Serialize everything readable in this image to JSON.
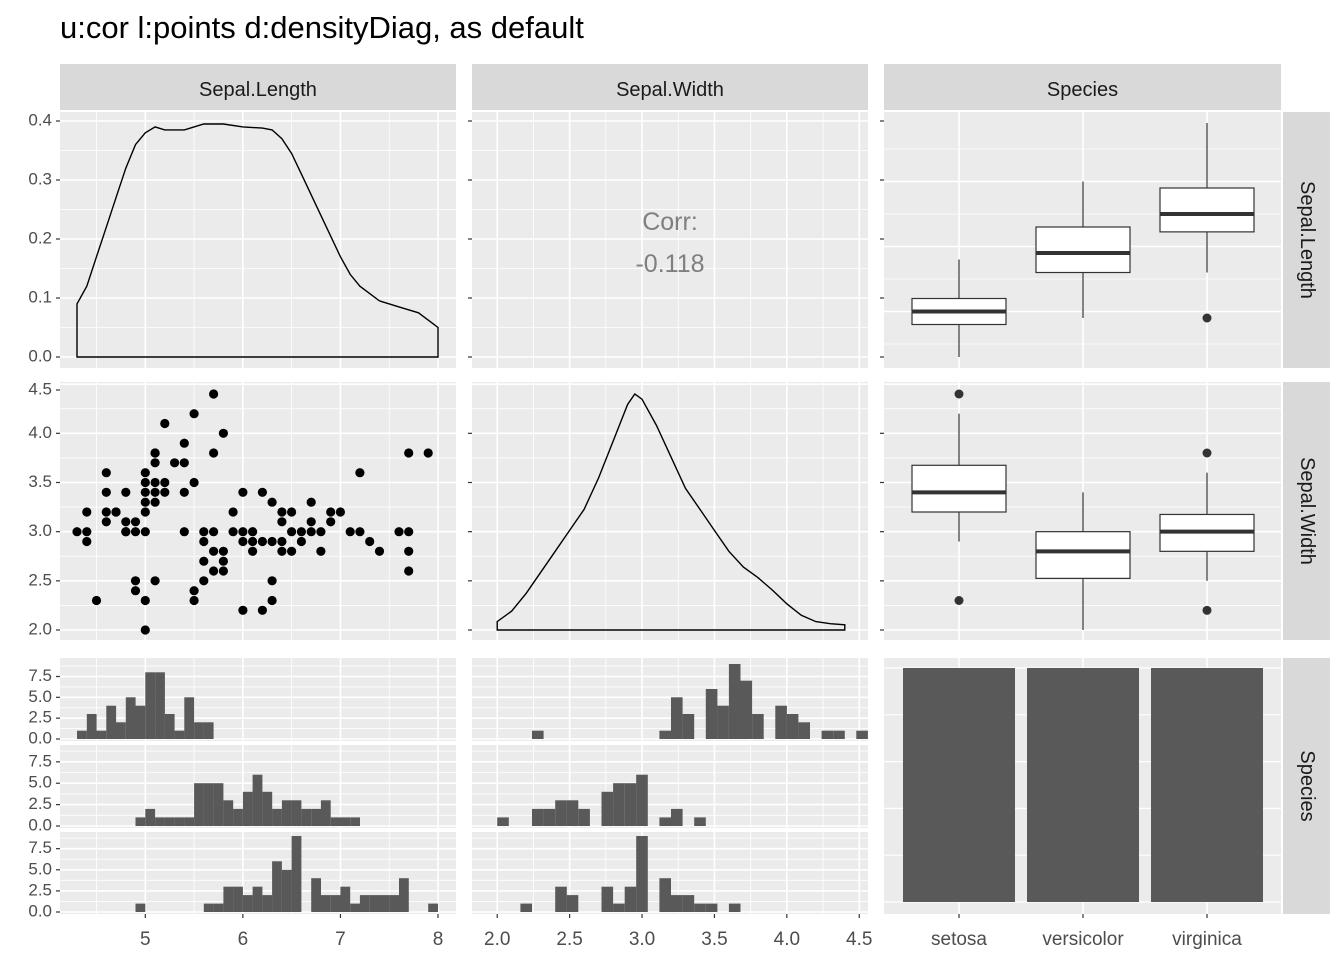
{
  "title": "u:cor l:points d:densityDiag, as default",
  "columns": [
    "Sepal.Length",
    "Sepal.Width",
    "Species"
  ],
  "rows": [
    "Sepal.Length",
    "Sepal.Width",
    "Species"
  ],
  "species": [
    "setosa",
    "versicolor",
    "virginica"
  ],
  "colors": {
    "panel_bg": "#EBEBEB",
    "strip_bg": "#D9D9D9",
    "grid": "#FFFFFF",
    "bar_fill": "#595959",
    "cor_text": "#7F7F7F",
    "axis_text": "#4D4D4D"
  },
  "chart_data": {
    "type": "scatterplot-matrix",
    "upper_cor": {
      "label": "Corr:",
      "value": "-0.118"
    },
    "x_axes": {
      "Sepal.Length": {
        "range": [
          4.3,
          8.0
        ],
        "ticks": [
          "5",
          "6",
          "7",
          "8"
        ],
        "tick_values": [
          5,
          6,
          7,
          8
        ]
      },
      "Sepal.Width": {
        "range": [
          1.95,
          4.45
        ],
        "ticks": [
          "2.0",
          "2.5",
          "3.0",
          "3.5",
          "4.0",
          "4.5"
        ],
        "tick_values": [
          2.0,
          2.5,
          3.0,
          3.5,
          4.0,
          4.5
        ]
      },
      "Species": {
        "ticks": [
          "setosa",
          "versicolor",
          "virginica"
        ]
      }
    },
    "y_axes": {
      "Sepal.Length": {
        "range": [
          0,
          0.4
        ],
        "ticks": [
          "0.0",
          "0.1",
          "0.2",
          "0.3",
          "0.4"
        ],
        "tick_values": [
          0,
          0.1,
          0.2,
          0.3,
          0.4
        ]
      },
      "Sepal.Width": {
        "range": [
          2.0,
          4.4
        ],
        "ticks": [
          "2.0",
          "2.5",
          "3.0",
          "3.5",
          "4.0",
          "4.5"
        ],
        "tick_values": [
          2.0,
          2.5,
          3.0,
          3.5,
          4.0,
          4.5
        ]
      },
      "Species": {
        "range": [
          0,
          9
        ],
        "ticks": [
          "0.0",
          "2.5",
          "5.0",
          "7.5"
        ],
        "tick_values": [
          0,
          2.5,
          5,
          7.5
        ]
      }
    },
    "density_sepal_length": {
      "x": [
        4.3,
        4.4,
        4.5,
        4.6,
        4.7,
        4.8,
        4.9,
        5.0,
        5.1,
        5.2,
        5.4,
        5.6,
        5.8,
        6.0,
        6.2,
        6.3,
        6.4,
        6.5,
        6.6,
        6.8,
        7.0,
        7.1,
        7.2,
        7.4,
        7.6,
        7.8,
        8.0
      ],
      "y": [
        0.09,
        0.12,
        0.17,
        0.22,
        0.27,
        0.32,
        0.36,
        0.38,
        0.39,
        0.385,
        0.385,
        0.395,
        0.395,
        0.39,
        0.388,
        0.385,
        0.37,
        0.345,
        0.31,
        0.24,
        0.17,
        0.14,
        0.12,
        0.095,
        0.085,
        0.075,
        0.05
      ]
    },
    "density_sepal_width": {
      "x": [
        2.0,
        2.1,
        2.2,
        2.3,
        2.4,
        2.5,
        2.6,
        2.7,
        2.8,
        2.9,
        2.95,
        3.0,
        3.1,
        3.2,
        3.3,
        3.4,
        3.5,
        3.6,
        3.7,
        3.8,
        3.9,
        4.0,
        4.1,
        4.2,
        4.3,
        4.4
      ],
      "y": [
        0.08,
        0.18,
        0.35,
        0.55,
        0.75,
        0.95,
        1.15,
        1.45,
        1.8,
        2.15,
        2.25,
        2.2,
        1.95,
        1.65,
        1.35,
        1.15,
        0.95,
        0.75,
        0.6,
        0.5,
        0.38,
        0.25,
        0.14,
        0.08,
        0.06,
        0.05
      ]
    },
    "scatter": {
      "sepal_length": [
        4.3,
        4.4,
        4.4,
        4.4,
        4.5,
        4.6,
        4.6,
        4.6,
        4.6,
        4.7,
        4.7,
        4.8,
        4.8,
        4.8,
        4.8,
        4.9,
        4.9,
        4.9,
        4.9,
        5.0,
        5.0,
        5.0,
        5.0,
        5.0,
        5.0,
        5.0,
        5.0,
        5.1,
        5.1,
        5.1,
        5.1,
        5.1,
        5.1,
        5.1,
        5.2,
        5.2,
        5.2,
        5.3,
        5.4,
        5.4,
        5.4,
        5.4,
        5.5,
        5.5,
        5.5,
        5.5,
        5.6,
        5.6,
        5.6,
        5.6,
        5.7,
        5.7,
        5.7,
        5.7,
        5.7,
        5.8,
        5.8,
        5.8,
        5.8,
        5.9,
        5.9,
        6.0,
        6.0,
        6.0,
        6.0,
        6.1,
        6.1,
        6.1,
        6.2,
        6.2,
        6.2,
        6.3,
        6.3,
        6.3,
        6.3,
        6.4,
        6.4,
        6.4,
        6.4,
        6.5,
        6.5,
        6.5,
        6.6,
        6.6,
        6.7,
        6.7,
        6.7,
        6.8,
        6.8,
        6.9,
        6.9,
        7.0,
        7.1,
        7.2,
        7.2,
        7.3,
        7.4,
        7.6,
        7.7,
        7.7,
        7.7,
        7.7,
        7.9
      ],
      "sepal_width": [
        3.0,
        2.9,
        3.0,
        3.2,
        2.3,
        3.1,
        3.2,
        3.4,
        3.6,
        3.2,
        3.2,
        3.0,
        3.1,
        3.4,
        3.0,
        3.0,
        3.1,
        2.5,
        2.4,
        3.6,
        3.4,
        3.0,
        3.3,
        3.5,
        2.0,
        2.3,
        3.2,
        3.5,
        3.8,
        3.3,
        3.7,
        3.4,
        2.5,
        3.8,
        3.5,
        3.4,
        4.1,
        3.7,
        3.9,
        3.7,
        3.4,
        3.0,
        4.2,
        3.5,
        2.3,
        2.4,
        2.9,
        3.0,
        2.7,
        2.5,
        4.4,
        3.8,
        2.8,
        2.6,
        3.0,
        4.0,
        2.7,
        2.8,
        2.6,
        3.0,
        3.2,
        2.2,
        2.9,
        3.4,
        3.0,
        2.8,
        2.9,
        3.0,
        2.2,
        2.9,
        3.4,
        3.3,
        2.5,
        2.3,
        2.9,
        3.2,
        2.9,
        2.8,
        3.1,
        2.8,
        3.0,
        3.2,
        2.9,
        3.0,
        3.1,
        3.0,
        3.3,
        2.8,
        3.0,
        3.1,
        3.2,
        3.2,
        3.0,
        3.6,
        3.0,
        2.9,
        2.8,
        3.0,
        3.8,
        2.6,
        2.8,
        3.0,
        3.8
      ]
    },
    "boxplots_sepal_length": [
      {
        "species": "setosa",
        "min": 4.3,
        "q1": 4.8,
        "median": 5.0,
        "q3": 5.2,
        "max": 5.8,
        "outliers": []
      },
      {
        "species": "versicolor",
        "min": 4.9,
        "q1": 5.6,
        "median": 5.9,
        "q3": 6.3,
        "max": 7.0,
        "outliers": []
      },
      {
        "species": "virginica",
        "min": 5.6,
        "q1": 6.225,
        "median": 6.5,
        "q3": 6.9,
        "max": 7.9,
        "outliers": [
          4.9
        ]
      }
    ],
    "boxplots_sepal_width": [
      {
        "species": "setosa",
        "min": 2.9,
        "q1": 3.2,
        "median": 3.4,
        "q3": 3.675,
        "max": 4.2,
        "outliers": [
          4.4,
          2.3
        ]
      },
      {
        "species": "versicolor",
        "min": 2.0,
        "q1": 2.525,
        "median": 2.8,
        "q3": 3.0,
        "max": 3.4,
        "outliers": []
      },
      {
        "species": "virginica",
        "min": 2.5,
        "q1": 2.8,
        "median": 3.0,
        "q3": 3.175,
        "max": 3.6,
        "outliers": [
          3.8,
          2.2
        ]
      }
    ],
    "hist_sepal_length": {
      "bin_start": 4.3,
      "bin_width": 0.1,
      "setosa": [
        1,
        3,
        1,
        4,
        2,
        5,
        4,
        8,
        8,
        3,
        1,
        5,
        2,
        2,
        0,
        0,
        0,
        0,
        0,
        0,
        0,
        0,
        0,
        0,
        0,
        0,
        0,
        0,
        0,
        0,
        0,
        0,
        0,
        0,
        0,
        0,
        0
      ],
      "versicolor": [
        0,
        0,
        0,
        0,
        0,
        0,
        1,
        2,
        1,
        1,
        1,
        1,
        5,
        5,
        5,
        3,
        2,
        4,
        6,
        4,
        2,
        3,
        3,
        2,
        2,
        3,
        1,
        1,
        1,
        0,
        0,
        0,
        0,
        0,
        0,
        0,
        0
      ],
      "virginica": [
        0,
        0,
        0,
        0,
        0,
        0,
        1,
        0,
        0,
        0,
        0,
        0,
        0,
        1,
        1,
        3,
        3,
        2,
        3,
        2,
        6,
        5,
        9,
        0,
        4,
        2,
        2,
        3,
        1,
        2,
        2,
        2,
        2,
        4,
        0,
        0,
        1
      ]
    },
    "hist_sepal_width": {
      "bin_start": 2.0,
      "bin_width": 0.08,
      "setosa": [
        0,
        0,
        0,
        1,
        0,
        0,
        0,
        0,
        0,
        0,
        0,
        0,
        0,
        0,
        1,
        5,
        3,
        0,
        6,
        4,
        9,
        7,
        3,
        0,
        4,
        3,
        2,
        0,
        1,
        1,
        0,
        1
      ],
      "versicolor": [
        1,
        0,
        0,
        2,
        2,
        3,
        3,
        2,
        0,
        4,
        5,
        5,
        6,
        0,
        1,
        2,
        0,
        1,
        0,
        0,
        0,
        0,
        0,
        0,
        0,
        0,
        0,
        0,
        0,
        0,
        0,
        0
      ],
      "virginica": [
        0,
        0,
        1,
        0,
        0,
        3,
        2,
        0,
        0,
        3,
        1,
        3,
        9,
        0,
        4,
        2,
        2,
        1,
        1,
        0,
        1,
        0,
        0,
        0,
        0,
        0,
        0,
        0,
        0,
        0,
        0,
        0
      ]
    },
    "species_counts": [
      50,
      50,
      50
    ]
  }
}
